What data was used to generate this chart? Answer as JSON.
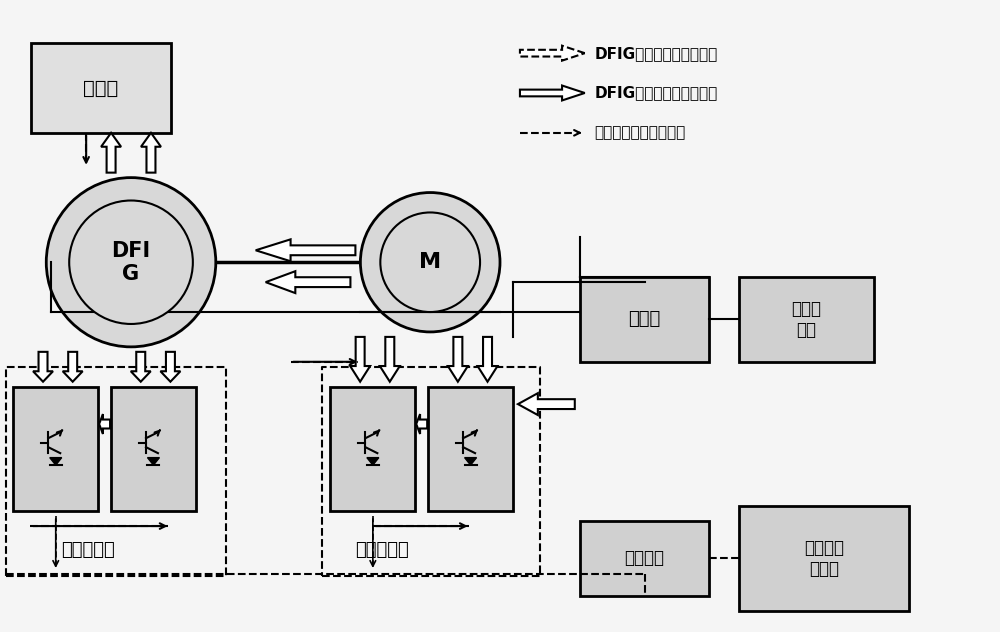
{
  "bg_color": "#e8e8e8",
  "box_color": "#d0d0d0",
  "title_label1": "DFIG超同步能量流动过程",
  "title_label2": "DFIG亚同步能量流动过程",
  "title_label3": "通讯线及控制信号方向",
  "label_fuzai": "负载柜",
  "label_dfig": "DFI\nG",
  "label_m": "M",
  "label_peidiangui": "配电柜",
  "label_peidianbianya": "配电变\n压器",
  "label_lici": "励磁变频器",
  "label_tuodong": "拖动变频器",
  "label_kongzhi": "控制系统",
  "label_fengli": "风力机模\n拟系统",
  "font_size_main": 14,
  "font_size_label": 12,
  "font_size_small": 10
}
